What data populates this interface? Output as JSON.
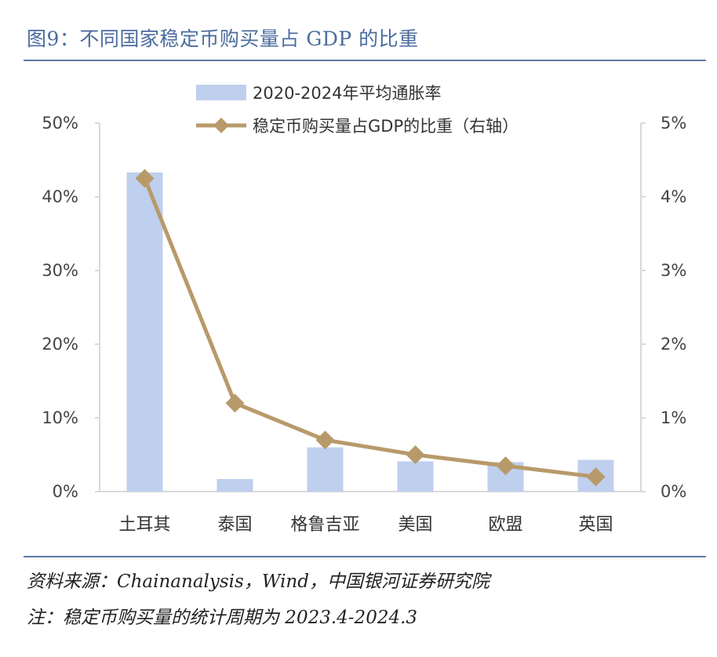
{
  "figure": {
    "title": "图9：不同国家稳定币购买量占 GDP 的比重",
    "source": "资料来源：Chainanalysis，Wind，中国银河证券研究院",
    "note": "注：稳定币购买量的统计周期为 2023.4-2024.3"
  },
  "colors": {
    "bar": "#bfcfee",
    "line": "#b89a6a",
    "axis": "#d9d9d9",
    "title": "#4b6c9e"
  },
  "chart_data": {
    "type": "bar",
    "categories": [
      "土耳其",
      "泰国",
      "格鲁吉亚",
      "美国",
      "欧盟",
      "英国"
    ],
    "series": [
      {
        "name": "2020-2024年平均通胀率",
        "type": "bar",
        "axis": "left",
        "values": [
          43.3,
          1.7,
          6.0,
          4.1,
          4.0,
          4.3
        ]
      },
      {
        "name": "稳定币购买量占GDP的比重（右轴）",
        "type": "line",
        "axis": "right",
        "values": [
          4.25,
          1.2,
          0.7,
          0.5,
          0.35,
          0.2
        ]
      }
    ],
    "y_left": {
      "ylim": [
        0,
        50
      ],
      "ticks": [
        "0%",
        "10%",
        "20%",
        "30%",
        "40%",
        "50%"
      ]
    },
    "y_right": {
      "ylim": [
        0,
        5
      ],
      "ticks": [
        "0%",
        "1%",
        "2%",
        "3%",
        "4%",
        "5%"
      ]
    },
    "legend": "top-center",
    "grid": false
  }
}
